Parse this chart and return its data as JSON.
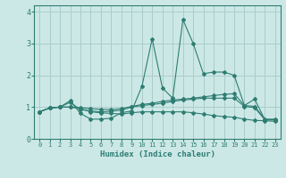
{
  "title": "",
  "xlabel": "Humidex (Indice chaleur)",
  "xlim": [
    -0.5,
    23.5
  ],
  "ylim": [
    0,
    4.2
  ],
  "xticks": [
    0,
    1,
    2,
    3,
    4,
    5,
    6,
    7,
    8,
    9,
    10,
    11,
    12,
    13,
    14,
    15,
    16,
    17,
    18,
    19,
    20,
    21,
    22,
    23
  ],
  "yticks": [
    0,
    1,
    2,
    3,
    4
  ],
  "bg_color": "#cce8e6",
  "grid_color": "#aacccc",
  "line_color": "#2e7d72",
  "lines": [
    [
      0.85,
      0.97,
      1.0,
      1.2,
      0.8,
      0.62,
      0.62,
      0.65,
      0.82,
      0.88,
      1.65,
      3.15,
      1.6,
      1.28,
      3.75,
      3.0,
      2.05,
      2.1,
      2.1,
      2.0,
      1.05,
      1.25,
      0.6,
      0.6
    ],
    [
      0.85,
      0.97,
      1.0,
      1.0,
      0.98,
      0.95,
      0.93,
      0.92,
      0.95,
      1.02,
      1.08,
      1.12,
      1.18,
      1.22,
      1.25,
      1.28,
      1.32,
      1.36,
      1.4,
      1.42,
      1.05,
      1.02,
      0.62,
      0.62
    ],
    [
      0.85,
      0.97,
      1.0,
      1.0,
      0.95,
      0.85,
      0.82,
      0.8,
      0.78,
      0.82,
      0.85,
      0.85,
      0.85,
      0.85,
      0.85,
      0.82,
      0.78,
      0.73,
      0.7,
      0.68,
      0.62,
      0.58,
      0.57,
      0.55
    ],
    [
      0.85,
      0.97,
      1.0,
      1.15,
      0.92,
      0.88,
      0.85,
      0.87,
      0.9,
      1.0,
      1.05,
      1.08,
      1.12,
      1.18,
      1.22,
      1.25,
      1.28,
      1.28,
      1.28,
      1.28,
      1.02,
      0.98,
      0.6,
      0.6
    ]
  ]
}
